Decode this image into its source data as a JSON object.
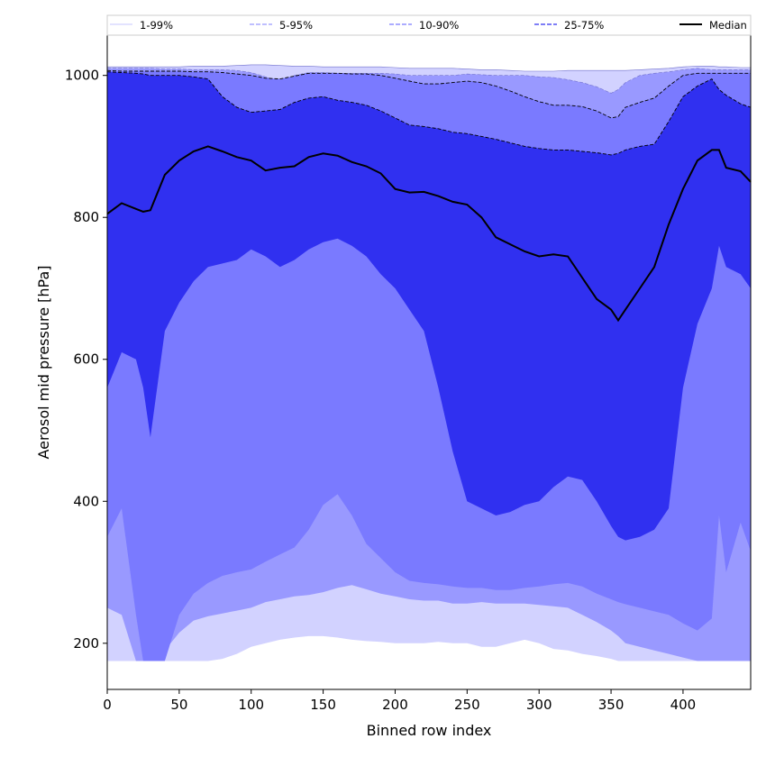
{
  "chart_data": {
    "type": "area",
    "xlabel": "Binned row index",
    "ylabel": "Aerosol mid pressure [hPa]",
    "xlim": [
      0,
      447
    ],
    "ylim": [
      135,
      1058
    ],
    "x_ticks": [
      0,
      50,
      100,
      150,
      200,
      250,
      300,
      350,
      400
    ],
    "y_ticks": [
      200,
      400,
      600,
      800,
      1000
    ],
    "grid": false,
    "legend_placement": "top, spanning full width above plot",
    "legend": [
      {
        "name": "1-99%",
        "color": "#d2d2ff",
        "dash": "solid"
      },
      {
        "name": "5-95%",
        "color": "#9999ff",
        "dash": "dashed"
      },
      {
        "name": "10-90%",
        "color": "#7a7aff",
        "dash": "dashed"
      },
      {
        "name": "25-75%",
        "color": "#3030f0",
        "dash": "dashed"
      },
      {
        "name": "Median",
        "color": "#000000",
        "dash": "solid"
      }
    ],
    "x": [
      0,
      10,
      20,
      25,
      30,
      40,
      50,
      60,
      70,
      80,
      90,
      100,
      110,
      120,
      130,
      140,
      150,
      160,
      170,
      180,
      190,
      200,
      210,
      220,
      230,
      240,
      250,
      260,
      270,
      280,
      290,
      300,
      310,
      320,
      330,
      340,
      350,
      355,
      360,
      370,
      380,
      390,
      400,
      410,
      420,
      425,
      430,
      440,
      447
    ],
    "series": [
      {
        "name": "1-99%",
        "color": "#d2d2ff",
        "upper": [
          1012,
          1012,
          1012,
          1012,
          1012,
          1012,
          1012,
          1013,
          1013,
          1013,
          1014,
          1015,
          1015,
          1014,
          1013,
          1013,
          1012,
          1012,
          1012,
          1012,
          1012,
          1011,
          1010,
          1010,
          1010,
          1010,
          1009,
          1008,
          1008,
          1007,
          1006,
          1006,
          1006,
          1007,
          1007,
          1007,
          1007,
          1007,
          1007,
          1008,
          1009,
          1010,
          1012,
          1013,
          1013,
          1012,
          1012,
          1011,
          1011
        ],
        "lower": [
          175,
          175,
          175,
          175,
          175,
          175,
          175,
          175,
          175,
          178,
          185,
          195,
          200,
          205,
          208,
          210,
          210,
          208,
          205,
          203,
          202,
          200,
          200,
          200,
          202,
          200,
          200,
          195,
          195,
          200,
          205,
          200,
          192,
          190,
          185,
          182,
          178,
          175,
          175,
          175,
          175,
          175,
          175,
          175,
          175,
          175,
          175,
          175,
          175
        ]
      },
      {
        "name": "5-95%",
        "color": "#9999ff",
        "upper": [
          1010,
          1010,
          1010,
          1010,
          1010,
          1009,
          1009,
          1008,
          1008,
          1008,
          1007,
          1004,
          998,
          992,
          1000,
          1004,
          1004,
          1003,
          1003,
          1003,
          1003,
          1002,
          1000,
          1000,
          1000,
          1000,
          1002,
          1001,
          1000,
          1000,
          1000,
          998,
          997,
          994,
          990,
          984,
          975,
          980,
          990,
          1000,
          1003,
          1005,
          1008,
          1010,
          1008,
          1008,
          1008,
          1008,
          1008
        ],
        "lower": [
          250,
          240,
          175,
          175,
          175,
          190,
          215,
          232,
          238,
          242,
          246,
          250,
          258,
          262,
          266,
          268,
          272,
          278,
          282,
          276,
          270,
          266,
          262,
          260,
          260,
          256,
          256,
          258,
          256,
          256,
          256,
          254,
          252,
          250,
          240,
          230,
          218,
          210,
          200,
          195,
          190,
          185,
          180,
          175,
          175,
          175,
          175,
          175,
          175
        ]
      },
      {
        "name": "10-90%",
        "color": "#7a7aff",
        "upper": [
          1007,
          1006,
          1006,
          1006,
          1006,
          1006,
          1006,
          1005,
          1005,
          1004,
          1002,
          1000,
          996,
          995,
          999,
          1003,
          1003,
          1003,
          1002,
          1002,
          1000,
          996,
          992,
          988,
          988,
          990,
          992,
          990,
          985,
          978,
          970,
          963,
          958,
          958,
          956,
          950,
          940,
          942,
          955,
          962,
          968,
          985,
          1000,
          1003,
          1003,
          1003,
          1003,
          1003,
          1003
        ],
        "lower": [
          350,
          390,
          240,
          175,
          175,
          175,
          240,
          270,
          285,
          295,
          300,
          304,
          315,
          325,
          335,
          360,
          395,
          410,
          380,
          340,
          320,
          300,
          288,
          285,
          283,
          280,
          278,
          278,
          275,
          275,
          278,
          280,
          283,
          285,
          280,
          270,
          262,
          258,
          255,
          250,
          245,
          240,
          228,
          218,
          235,
          380,
          300,
          370,
          330
        ]
      },
      {
        "name": "25-75%",
        "color": "#3030f0",
        "upper": [
          1005,
          1004,
          1003,
          1002,
          1000,
          1000,
          1000,
          998,
          995,
          970,
          955,
          948,
          950,
          952,
          962,
          968,
          970,
          965,
          962,
          958,
          950,
          940,
          930,
          928,
          925,
          920,
          918,
          914,
          910,
          905,
          900,
          897,
          895,
          895,
          893,
          891,
          888,
          890,
          895,
          900,
          903,
          935,
          970,
          985,
          995,
          980,
          972,
          960,
          955
        ],
        "lower": [
          560,
          610,
          600,
          560,
          490,
          640,
          680,
          710,
          730,
          735,
          740,
          755,
          745,
          730,
          740,
          755,
          765,
          770,
          760,
          745,
          720,
          700,
          670,
          640,
          560,
          470,
          400,
          390,
          380,
          385,
          395,
          400,
          420,
          435,
          430,
          400,
          365,
          350,
          345,
          350,
          360,
          390,
          560,
          650,
          700,
          760,
          730,
          720,
          700
        ]
      },
      {
        "name": "Median",
        "color": "#000000",
        "values": [
          805,
          820,
          812,
          808,
          810,
          860,
          880,
          893,
          900,
          893,
          885,
          880,
          866,
          870,
          872,
          885,
          890,
          887,
          878,
          872,
          862,
          840,
          835,
          836,
          830,
          822,
          818,
          800,
          772,
          762,
          752,
          745,
          748,
          745,
          715,
          685,
          670,
          655,
          670,
          700,
          730,
          790,
          840,
          880,
          895,
          895,
          870,
          865,
          850
        ]
      }
    ]
  }
}
